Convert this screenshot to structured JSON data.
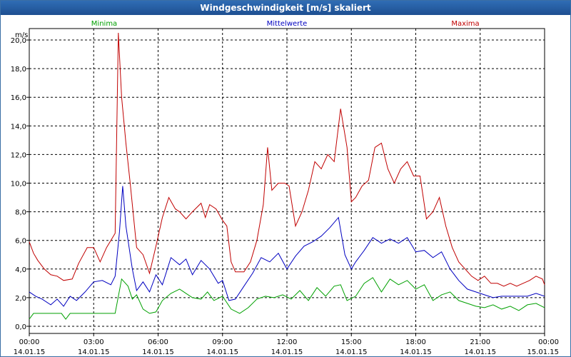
{
  "window": {
    "title": "Windgeschwindigkeit [m/s] skaliert"
  },
  "chart_data": {
    "type": "line",
    "title": "Windgeschwindigkeit [m/s] skaliert",
    "ylabel": "m/s",
    "xlabel": "",
    "ylim": [
      -0.5,
      20.8
    ],
    "xlim": [
      0,
      24
    ],
    "grid": true,
    "y_ticks": [
      0,
      2,
      4,
      6,
      8,
      10,
      12,
      14,
      16,
      18,
      20
    ],
    "y_tick_labels": [
      "0,0",
      "2,0",
      "4,0",
      "6,0",
      "8,0",
      "10,0",
      "12,0",
      "14,0",
      "16,0",
      "18,0",
      "20,0"
    ],
    "x_ticks": [
      {
        "pos": 0,
        "time": "00:00",
        "date": "14.01.15"
      },
      {
        "pos": 3,
        "time": "03:00",
        "date": "14.01.15"
      },
      {
        "pos": 6,
        "time": "06:00",
        "date": "14.01.15"
      },
      {
        "pos": 9,
        "time": "09:00",
        "date": "14.01.15"
      },
      {
        "pos": 12,
        "time": "12:00",
        "date": "14.01.15"
      },
      {
        "pos": 15,
        "time": "15:00",
        "date": "14.01.15"
      },
      {
        "pos": 18,
        "time": "18:00",
        "date": "14.01.15"
      },
      {
        "pos": 21,
        "time": "21:00",
        "date": "14.01.15"
      },
      {
        "pos": 24,
        "time": "00:00",
        "date": "15.01.15"
      }
    ],
    "series": [
      {
        "name": "Minima",
        "color": "#00a000",
        "x": [
          0,
          0.2,
          0.4,
          1,
          1.5,
          1.7,
          1.9,
          3,
          4,
          4.3,
          4.6,
          4.8,
          5,
          5.3,
          5.6,
          5.9,
          6.2,
          6.6,
          7,
          7.3,
          7.6,
          8,
          8.3,
          8.6,
          9,
          9.4,
          9.8,
          10.2,
          10.6,
          11,
          11.4,
          11.8,
          12.2,
          12.6,
          13,
          13.4,
          13.8,
          14.2,
          14.5,
          14.8,
          15.2,
          15.6,
          16,
          16.4,
          16.8,
          17.2,
          17.6,
          18,
          18.4,
          18.8,
          19.2,
          19.6,
          20,
          20.4,
          20.8,
          21.2,
          21.6,
          22,
          22.4,
          22.8,
          23.2,
          23.6,
          24
        ],
        "values": [
          0.5,
          0.9,
          0.9,
          0.9,
          0.9,
          0.5,
          0.9,
          0.9,
          0.9,
          3.3,
          2.8,
          1.9,
          2.2,
          1.2,
          0.9,
          1.0,
          1.8,
          2.3,
          2.6,
          2.3,
          2.0,
          1.9,
          2.4,
          1.8,
          2.1,
          1.2,
          0.9,
          1.3,
          1.9,
          2.1,
          2.0,
          2.2,
          1.9,
          2.5,
          1.8,
          2.7,
          2.1,
          2.8,
          2.9,
          1.8,
          2.1,
          3.0,
          3.4,
          2.4,
          3.3,
          2.9,
          3.2,
          2.6,
          2.9,
          1.8,
          2.2,
          2.4,
          1.8,
          1.6,
          1.4,
          1.3,
          1.5,
          1.2,
          1.4,
          1.1,
          1.5,
          1.6,
          1.3
        ]
      },
      {
        "name": "Mittelwerte",
        "color": "#0000c0",
        "x": [
          0,
          0.3,
          0.6,
          1,
          1.3,
          1.6,
          1.9,
          2.2,
          2.6,
          3,
          3.4,
          3.8,
          4,
          4.2,
          4.35,
          4.5,
          4.8,
          5,
          5.3,
          5.6,
          5.9,
          6.2,
          6.6,
          7,
          7.3,
          7.6,
          8,
          8.4,
          8.8,
          9,
          9.3,
          9.6,
          10,
          10.4,
          10.8,
          11.2,
          11.6,
          12,
          12.4,
          12.8,
          13.2,
          13.6,
          14,
          14.4,
          14.7,
          15,
          15.2,
          15.6,
          16,
          16.4,
          16.8,
          17.2,
          17.6,
          18,
          18.4,
          18.8,
          19.2,
          19.6,
          20,
          20.4,
          20.8,
          21.2,
          21.6,
          22,
          22.4,
          22.8,
          23.2,
          23.6,
          24
        ],
        "values": [
          2.4,
          2.1,
          1.9,
          1.5,
          1.9,
          1.4,
          2.1,
          1.8,
          2.4,
          3.1,
          3.2,
          2.9,
          3.5,
          6.6,
          9.8,
          7.0,
          4.0,
          2.5,
          3.1,
          2.4,
          3.6,
          2.9,
          4.8,
          4.3,
          4.7,
          3.6,
          4.6,
          4.0,
          3.0,
          3.2,
          1.8,
          1.9,
          2.8,
          3.7,
          4.8,
          4.5,
          5.1,
          4.0,
          4.9,
          5.6,
          5.9,
          6.3,
          6.9,
          7.6,
          5.0,
          4.0,
          4.5,
          5.3,
          6.2,
          5.8,
          6.1,
          5.8,
          6.2,
          5.2,
          5.3,
          4.8,
          5.2,
          4.0,
          3.2,
          2.6,
          2.4,
          2.2,
          2.0,
          2.1,
          2.1,
          2.1,
          2.1,
          2.3,
          2.1
        ]
      },
      {
        "name": "Maxima",
        "color": "#c00000",
        "x": [
          0,
          0.2,
          0.4,
          0.7,
          1,
          1.3,
          1.6,
          2,
          2.3,
          2.7,
          3,
          3.3,
          3.6,
          4,
          4.15,
          4.3,
          4.5,
          4.7,
          5,
          5.3,
          5.6,
          5.9,
          6.2,
          6.5,
          6.8,
          7,
          7.3,
          7.6,
          8,
          8.2,
          8.4,
          8.7,
          9,
          9.2,
          9.4,
          9.6,
          10,
          10.3,
          10.6,
          10.9,
          11.1,
          11.3,
          11.6,
          11.9,
          12.1,
          12.4,
          12.7,
          13,
          13.3,
          13.6,
          13.9,
          14.2,
          14.5,
          14.8,
          15,
          15.2,
          15.5,
          15.8,
          16.1,
          16.4,
          16.7,
          17,
          17.3,
          17.6,
          17.9,
          18.2,
          18.5,
          18.8,
          19.1,
          19.4,
          19.7,
          20,
          20.3,
          20.6,
          20.9,
          21.2,
          21.5,
          21.8,
          22.1,
          22.4,
          22.7,
          23,
          23.3,
          23.6,
          23.9,
          24
        ],
        "values": [
          5.9,
          5.1,
          4.6,
          4.0,
          3.6,
          3.5,
          3.2,
          3.3,
          4.4,
          5.5,
          5.5,
          4.5,
          5.5,
          6.5,
          20.5,
          16.0,
          12.8,
          10.0,
          5.5,
          5.0,
          3.7,
          5.6,
          7.6,
          9.0,
          8.2,
          8.0,
          7.5,
          8.0,
          8.6,
          7.6,
          8.5,
          8.2,
          7.4,
          7.0,
          4.5,
          3.8,
          3.8,
          4.5,
          6.0,
          8.5,
          12.5,
          9.5,
          10.0,
          10.0,
          9.8,
          7.0,
          8.0,
          9.5,
          11.5,
          11.0,
          12.0,
          11.5,
          15.2,
          12.5,
          8.7,
          9.0,
          9.8,
          10.2,
          12.5,
          12.8,
          11.0,
          10.0,
          11.0,
          11.5,
          10.5,
          10.5,
          7.5,
          8.0,
          9.0,
          7.0,
          5.5,
          4.5,
          4.0,
          3.5,
          3.2,
          3.5,
          3.0,
          3.0,
          2.8,
          3.0,
          2.8,
          3.0,
          3.2,
          3.5,
          3.3,
          2.9
        ]
      }
    ]
  }
}
